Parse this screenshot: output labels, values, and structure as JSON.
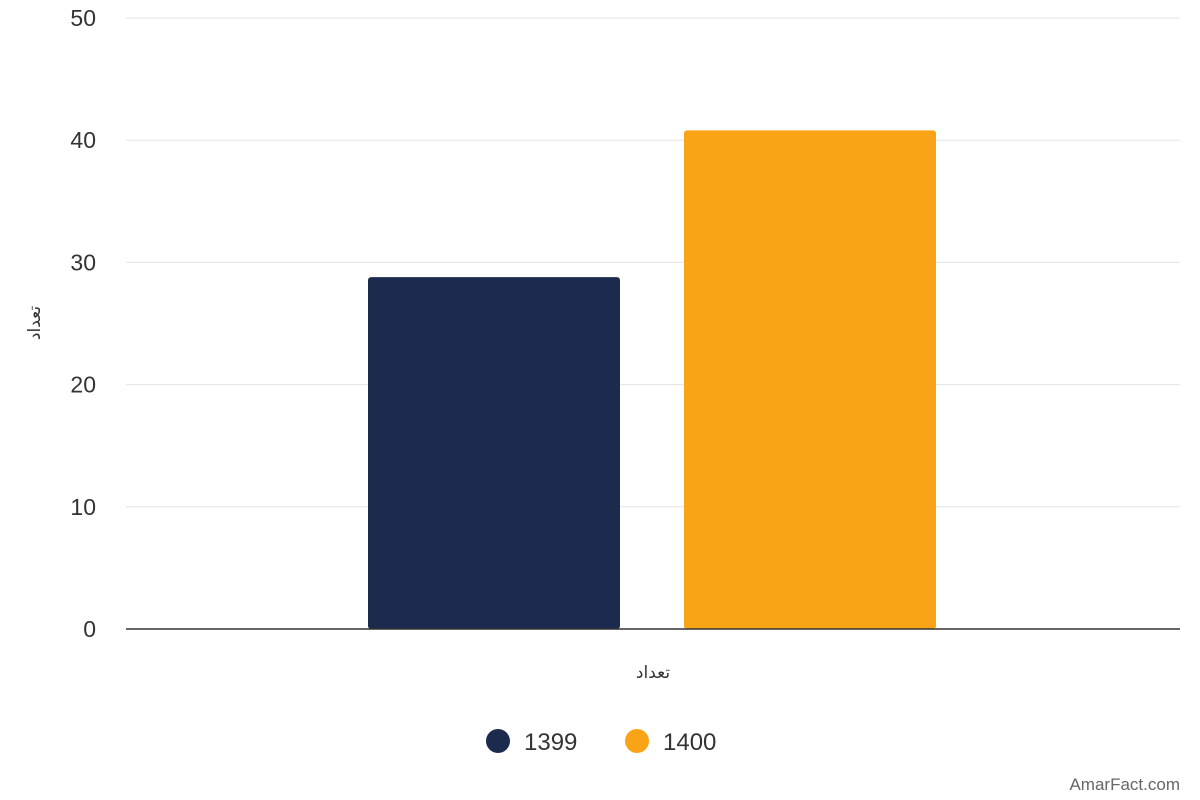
{
  "chart_data": {
    "type": "bar",
    "categories": [
      "تعداد"
    ],
    "series": [
      {
        "name": "1399",
        "values": [
          28.8
        ],
        "color": "#1c2b4d"
      },
      {
        "name": "1400",
        "values": [
          40.8
        ],
        "color": "#f9a416"
      }
    ],
    "xlabel": "تعداد",
    "ylabel": "تعداد",
    "ylim": [
      0,
      50
    ],
    "yticks": [
      "0",
      "10",
      "20",
      "30",
      "40",
      "50"
    ],
    "grid": true,
    "legend": "bottom-center"
  },
  "watermark": "AmarFact.com"
}
